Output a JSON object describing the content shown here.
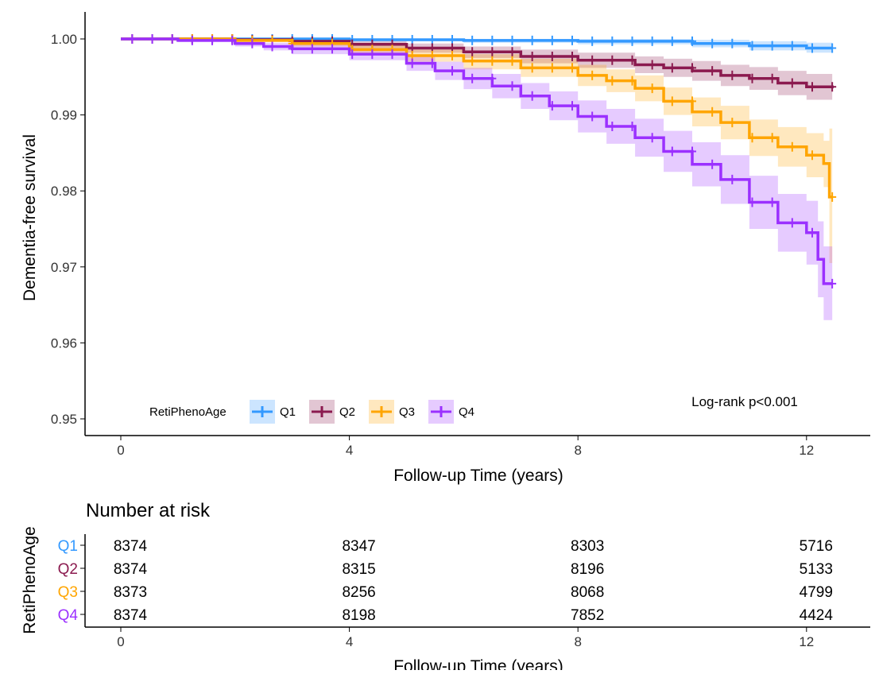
{
  "chart_data": {
    "type": "line",
    "subtype": "kaplan-meier",
    "title": "",
    "xlabel": "Follow-up Time (years)",
    "ylabel": "Dementia-free survival",
    "xlim": [
      -0.6,
      13.1
    ],
    "ylim": [
      0.9475,
      1.0035
    ],
    "xticks": [
      0,
      4,
      8,
      12
    ],
    "yticks": [
      0.95,
      0.96,
      0.97,
      0.98,
      0.99,
      1.0
    ],
    "ytick_labels": [
      "0.95",
      "0.96",
      "0.97",
      "0.98",
      "0.99",
      "1.00"
    ],
    "grid": false,
    "legend": {
      "title": "RetiPhenoAge",
      "placement": "bottom-left",
      "entries": [
        "Q1",
        "Q2",
        "Q3",
        "Q4"
      ]
    },
    "annotation": "Log-rank p<0.001",
    "series": [
      {
        "name": "Q1",
        "color": "#3399FF",
        "x": [
          0,
          2,
          4,
          6,
          8,
          10,
          11,
          12,
          12.45
        ],
        "y": [
          1.0,
          1.0,
          0.9999,
          0.9998,
          0.9997,
          0.9994,
          0.9991,
          0.9988,
          0.9988
        ],
        "lower": [
          1.0,
          0.9999,
          0.9997,
          0.9995,
          0.9993,
          0.9989,
          0.9985,
          0.9982,
          0.9982
        ],
        "upper": [
          1.0,
          1.0,
          1.0,
          1.0,
          1.0,
          0.9999,
          0.9997,
          0.9995,
          0.9995
        ]
      },
      {
        "name": "Q2",
        "color": "#8B1A4F",
        "x": [
          0,
          2,
          3,
          4,
          5,
          6,
          7,
          8,
          9,
          9.5,
          10,
          10.5,
          11,
          11.5,
          12,
          12.45
        ],
        "y": [
          1.0,
          0.9999,
          0.9997,
          0.9993,
          0.9988,
          0.9983,
          0.9977,
          0.9972,
          0.9966,
          0.9962,
          0.9958,
          0.9952,
          0.9948,
          0.9942,
          0.9937,
          0.9935
        ],
        "lower": [
          1.0,
          0.9997,
          0.9994,
          0.9988,
          0.9982,
          0.9975,
          0.9968,
          0.9962,
          0.9955,
          0.995,
          0.9945,
          0.9938,
          0.9933,
          0.9926,
          0.992,
          0.9917
        ],
        "upper": [
          1.0,
          1.0,
          0.9999,
          0.9997,
          0.9994,
          0.999,
          0.9986,
          0.9982,
          0.9977,
          0.9974,
          0.9971,
          0.9966,
          0.9963,
          0.9958,
          0.9954,
          0.9953
        ]
      },
      {
        "name": "Q3",
        "color": "#FFA500",
        "x": [
          0,
          2,
          3,
          4,
          5,
          6,
          7,
          8,
          8.5,
          9,
          9.5,
          10,
          10.5,
          11,
          11.5,
          12,
          12.3,
          12.4,
          12.45
        ],
        "y": [
          1.0,
          0.9998,
          0.9994,
          0.9986,
          0.9978,
          0.9971,
          0.9962,
          0.9952,
          0.9945,
          0.9935,
          0.9918,
          0.9904,
          0.989,
          0.987,
          0.9858,
          0.9847,
          0.9836,
          0.9792,
          0.9792
        ],
        "lower": [
          1.0,
          0.9996,
          0.999,
          0.998,
          0.997,
          0.996,
          0.995,
          0.9938,
          0.993,
          0.9918,
          0.99,
          0.9885,
          0.9868,
          0.9846,
          0.9832,
          0.9818,
          0.9805,
          0.9705,
          0.9705
        ],
        "upper": [
          1.0,
          1.0,
          0.9998,
          0.9992,
          0.9986,
          0.998,
          0.9974,
          0.9966,
          0.996,
          0.9952,
          0.9936,
          0.9923,
          0.9912,
          0.9894,
          0.9884,
          0.9876,
          0.9866,
          0.9882,
          0.9882
        ]
      },
      {
        "name": "Q4",
        "color": "#9B30FF",
        "x": [
          0,
          1,
          2,
          2.5,
          3,
          4,
          5,
          5.5,
          6,
          6.5,
          7,
          7.5,
          8,
          8.5,
          9,
          9.5,
          10,
          10.5,
          11,
          11.5,
          12,
          12.2,
          12.3,
          12.45
        ],
        "y": [
          1.0,
          0.9998,
          0.9994,
          0.999,
          0.9987,
          0.998,
          0.9968,
          0.9958,
          0.9948,
          0.9938,
          0.9925,
          0.9912,
          0.9898,
          0.9885,
          0.987,
          0.9852,
          0.9835,
          0.9815,
          0.9785,
          0.9758,
          0.9745,
          0.971,
          0.9678,
          0.9678
        ],
        "lower": [
          1.0,
          0.9996,
          0.999,
          0.9985,
          0.998,
          0.9972,
          0.9958,
          0.9946,
          0.9934,
          0.9922,
          0.9908,
          0.9893,
          0.9877,
          0.9862,
          0.9845,
          0.9825,
          0.9806,
          0.9783,
          0.975,
          0.972,
          0.9703,
          0.966,
          0.963,
          0.963
        ],
        "upper": [
          1.0,
          1.0,
          0.9998,
          0.9995,
          0.9993,
          0.9988,
          0.9978,
          0.997,
          0.9962,
          0.9954,
          0.9942,
          0.9931,
          0.9919,
          0.9908,
          0.9895,
          0.9879,
          0.9864,
          0.9847,
          0.982,
          0.9796,
          0.9787,
          0.976,
          0.9727,
          0.9727
        ]
      }
    ]
  },
  "risk_table": {
    "title": "Number at risk",
    "ylabel": "RetiPhenoAge",
    "xlabel": "Follow-up Time (years)",
    "times": [
      0,
      4,
      8,
      12
    ],
    "rows": [
      {
        "group": "Q1",
        "color": "#3399FF",
        "values": [
          "8374",
          "8347",
          "8303",
          "5716"
        ]
      },
      {
        "group": "Q2",
        "color": "#8B1A4F",
        "values": [
          "8374",
          "8315",
          "8196",
          "5133"
        ]
      },
      {
        "group": "Q3",
        "color": "#FFA500",
        "values": [
          "8373",
          "8256",
          "8068",
          "4799"
        ]
      },
      {
        "group": "Q4",
        "color": "#9B30FF",
        "values": [
          "8374",
          "8198",
          "7852",
          "4424"
        ]
      }
    ]
  }
}
